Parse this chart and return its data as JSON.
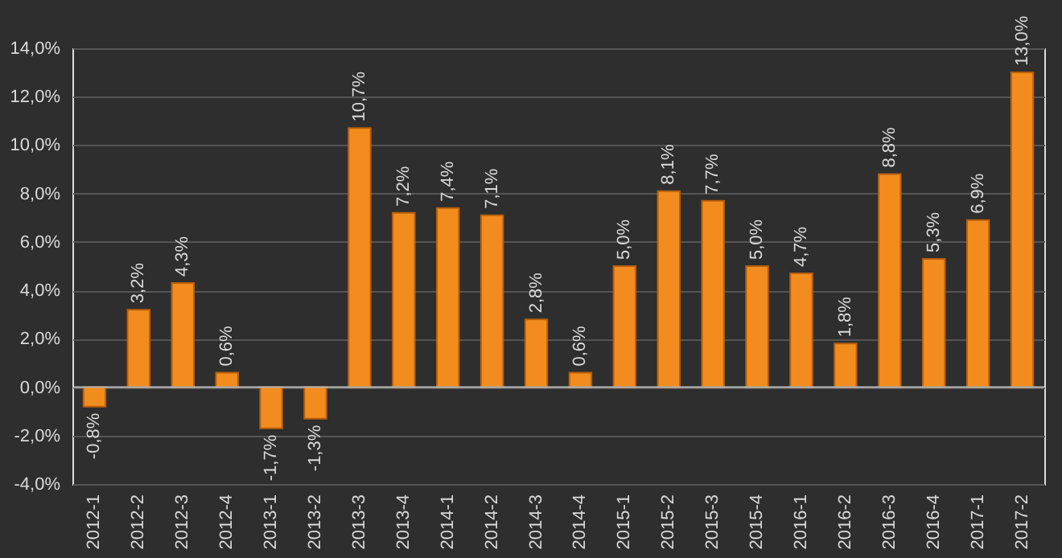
{
  "chart_data": {
    "type": "bar",
    "categories": [
      "2012-1",
      "2012-2",
      "2012-3",
      "2012-4",
      "2013-1",
      "2013-2",
      "2013-3",
      "2013-4",
      "2014-1",
      "2014-2",
      "2014-3",
      "2014-4",
      "2015-1",
      "2015-2",
      "2015-3",
      "2015-4",
      "2016-1",
      "2016-2",
      "2016-3",
      "2016-4",
      "2017-1",
      "2017-2"
    ],
    "values": [
      -0.8,
      3.2,
      4.3,
      0.6,
      -1.7,
      -1.3,
      10.7,
      7.2,
      7.4,
      7.1,
      2.8,
      0.6,
      5.0,
      8.1,
      7.7,
      5.0,
      4.7,
      1.8,
      8.8,
      5.3,
      6.9,
      13.0
    ],
    "value_labels": [
      "-0,8%",
      "3,2%",
      "4,3%",
      "0,6%",
      "-1,7%",
      "-1,3%",
      "10,7%",
      "7,2%",
      "7,4%",
      "7,1%",
      "2,8%",
      "0,6%",
      "5,0%",
      "8,1%",
      "7,7%",
      "5,0%",
      "4,7%",
      "1,8%",
      "8,8%",
      "5,3%",
      "6,9%",
      "13,0%"
    ],
    "color": "#f28c1e",
    "ylim": [
      -4,
      14
    ],
    "yticks": [
      {
        "value": -4,
        "label": "-4,0%"
      },
      {
        "value": -2,
        "label": "-2,0%"
      },
      {
        "value": 0,
        "label": "0,0%"
      },
      {
        "value": 2,
        "label": "2,0%"
      },
      {
        "value": 4,
        "label": "4,0%"
      },
      {
        "value": 6,
        "label": "6,0%"
      },
      {
        "value": 8,
        "label": "8,0%"
      },
      {
        "value": 10,
        "label": "10,0%"
      },
      {
        "value": 12,
        "label": "12,0%"
      },
      {
        "value": 14,
        "label": "14,0%"
      }
    ],
    "grid": "y"
  }
}
